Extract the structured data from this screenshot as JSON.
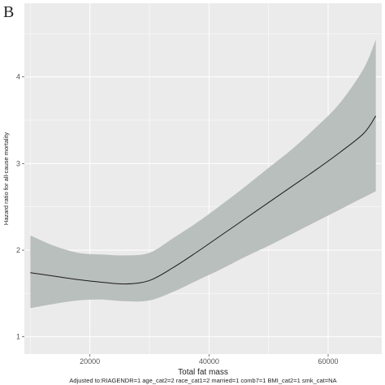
{
  "panel_label": "B",
  "chart_data": {
    "type": "line",
    "title": "",
    "xlabel": "Total fat mass",
    "ylabel": "Hazard ratio for all-cause mortality",
    "caption": "Adjusted to:RIAGENDR=1 age_cat2=2 race_cat1=2 married=1 comb7=1 BMI_cat2=1 smk_cat=NA",
    "xlim": [
      9000,
      69000
    ],
    "ylim": [
      0.8,
      4.85
    ],
    "x_ticks": [
      20000,
      40000,
      60000
    ],
    "x_tick_labels": [
      "20000",
      "40000",
      "60000"
    ],
    "y_ticks": [
      1,
      2,
      3,
      4
    ],
    "y_tick_labels": [
      "1",
      "2",
      "3",
      "4"
    ],
    "grid": true,
    "background": "#ebebeb",
    "band_color": "#b9bfbc",
    "line_color": "#1a1a1a",
    "series": [
      {
        "x": [
          10000,
          14000,
          18000,
          22000,
          26000,
          30000,
          34000,
          38000,
          42000,
          46000,
          50000,
          54000,
          58000,
          62000,
          66000,
          68000
        ],
        "y": [
          1.74,
          1.7,
          1.66,
          1.63,
          1.61,
          1.65,
          1.8,
          1.98,
          2.17,
          2.36,
          2.55,
          2.74,
          2.93,
          3.13,
          3.35,
          3.55
        ],
        "lower": [
          1.33,
          1.38,
          1.42,
          1.43,
          1.41,
          1.42,
          1.52,
          1.65,
          1.78,
          1.92,
          2.05,
          2.19,
          2.33,
          2.47,
          2.61,
          2.68
        ],
        "upper": [
          2.17,
          2.05,
          1.97,
          1.95,
          1.94,
          1.97,
          2.14,
          2.32,
          2.52,
          2.73,
          2.95,
          3.17,
          3.42,
          3.7,
          4.1,
          4.43
        ]
      }
    ]
  }
}
